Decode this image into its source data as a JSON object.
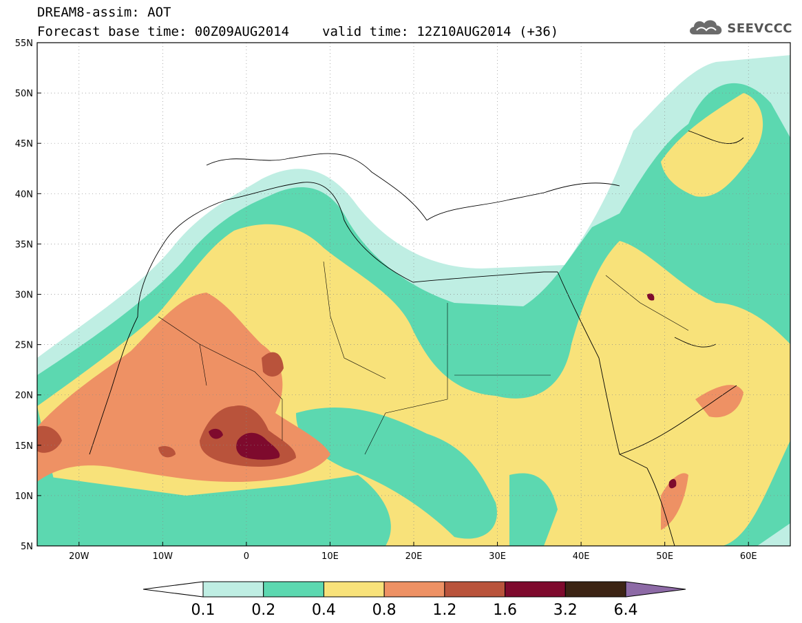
{
  "header": {
    "line1": "DREAM8-assim: AOT",
    "base_time": "Forecast base time: 00Z09AUG2014",
    "valid_time": "valid time: 12Z10AUG2014 (+36)"
  },
  "logo": {
    "text": "SEEVCCC",
    "icon": "cloud-logo-icon"
  },
  "map": {
    "lon_range": [
      -25,
      65
    ],
    "lat_range": [
      5,
      55
    ],
    "lat_ticks": [
      {
        "v": 55,
        "label": "55N"
      },
      {
        "v": 50,
        "label": "50N"
      },
      {
        "v": 45,
        "label": "45N"
      },
      {
        "v": 40,
        "label": "40N"
      },
      {
        "v": 35,
        "label": "35N"
      },
      {
        "v": 30,
        "label": "30N"
      },
      {
        "v": 25,
        "label": "25N"
      },
      {
        "v": 20,
        "label": "20N"
      },
      {
        "v": 15,
        "label": "15N"
      },
      {
        "v": 10,
        "label": "10N"
      },
      {
        "v": 5,
        "label": "5N"
      }
    ],
    "lon_ticks": [
      {
        "v": -20,
        "label": "20W"
      },
      {
        "v": -10,
        "label": "10W"
      },
      {
        "v": 0,
        "label": "0"
      },
      {
        "v": 10,
        "label": "10E"
      },
      {
        "v": 20,
        "label": "20E"
      },
      {
        "v": 30,
        "label": "30E"
      },
      {
        "v": 40,
        "label": "40E"
      },
      {
        "v": 50,
        "label": "50E"
      },
      {
        "v": 60,
        "label": "60E"
      }
    ]
  },
  "colorbar": {
    "colors": [
      "#ffffff",
      "#bfeee3",
      "#5cd8b0",
      "#f8e27a",
      "#ee9164",
      "#b9533b",
      "#7e0a2d",
      "#3c2414",
      "#8d6aa6"
    ],
    "labels": [
      "0.1",
      "0.2",
      "0.4",
      "0.8",
      "1.2",
      "1.6",
      "3.2",
      "6.4"
    ]
  }
}
